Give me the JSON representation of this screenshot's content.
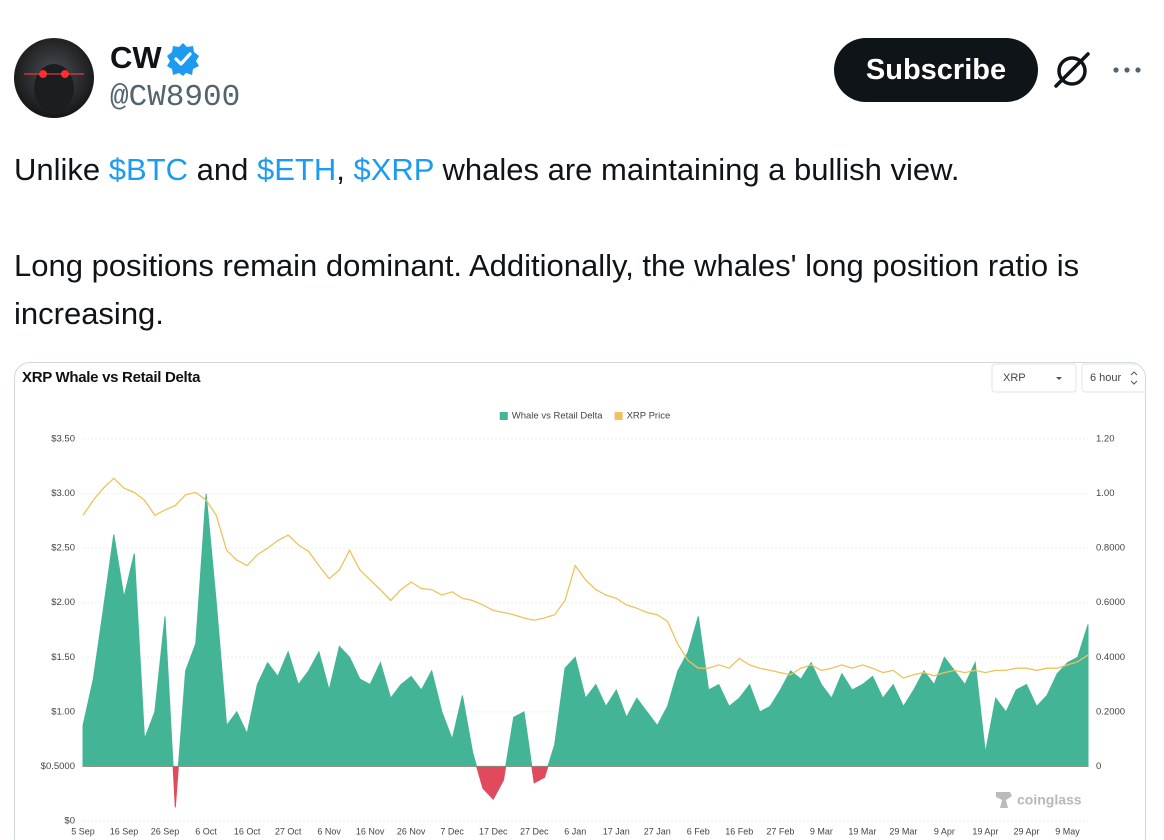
{
  "post": {
    "author_name": "CW",
    "handle": "@CW8900",
    "button": "Subscribe",
    "paragraphs": [
      [
        {
          "text": "Unlike "
        },
        {
          "text": "$BTC",
          "link": true
        },
        {
          "text": " and "
        },
        {
          "text": "$ETH",
          "link": true
        },
        {
          "text": ", "
        },
        {
          "text": "$XRP",
          "link": true
        },
        {
          "text": " whales are maintaining a bullish view."
        }
      ],
      [
        {
          "text": "Long positions remain dominant. Additionally, the whales' long position ratio is increasing."
        }
      ]
    ]
  },
  "chart_data": {
    "type": "area_line",
    "title": "XRP Whale vs Retail Delta",
    "coin_select": "XRP",
    "interval_select": "6 hour",
    "watermark": "coinglass",
    "grid": true,
    "legend": "top",
    "categories": [
      "5 Sep",
      null,
      null,
      null,
      "16 Sep",
      null,
      null,
      null,
      "26 Sep",
      null,
      null,
      null,
      "6 Oct",
      null,
      null,
      null,
      "16 Oct",
      null,
      null,
      null,
      "27 Oct",
      null,
      null,
      null,
      "6 Nov",
      null,
      null,
      null,
      "16 Nov",
      null,
      null,
      null,
      "26 Nov",
      null,
      null,
      null,
      "7 Dec",
      null,
      null,
      null,
      "17 Dec",
      null,
      null,
      null,
      "27 Dec",
      null,
      null,
      null,
      "6 Jan",
      null,
      null,
      null,
      "17 Jan",
      null,
      null,
      null,
      "27 Jan",
      null,
      null,
      null,
      "6 Feb",
      null,
      null,
      null,
      "16 Feb",
      null,
      null,
      null,
      "27 Feb",
      null,
      null,
      null,
      "9 Mar",
      null,
      null,
      null,
      "19 Mar",
      null,
      null,
      null,
      "29 Mar",
      null,
      null,
      null,
      "9 Apr",
      null,
      null,
      null,
      "19 Apr",
      null,
      null,
      null,
      "29 Apr",
      null,
      null,
      null,
      "9 May",
      null,
      null
    ],
    "ylim": [
      0,
      3.5
    ],
    "yticks": [
      {
        "value": 0,
        "label": "$0"
      },
      {
        "value": 0.5,
        "label": "$0.5000"
      },
      {
        "value": 1,
        "label": "$1.00"
      },
      {
        "value": 1.5,
        "label": "$1.50"
      },
      {
        "value": 2,
        "label": "$2.00"
      },
      {
        "value": 2.5,
        "label": "$2.50"
      },
      {
        "value": 3,
        "label": "$3.00"
      },
      {
        "value": 3.5,
        "label": "$3.50"
      }
    ],
    "y2lim": [
      -0.2,
      1.2
    ],
    "y2ticks": [
      0,
      {
        "value": 0.2,
        "label": "0.2000"
      },
      {
        "value": 0.4,
        "label": "0.4000"
      },
      {
        "value": 0.6,
        "label": "0.6000"
      },
      {
        "value": 0.8,
        "label": "0.8000"
      },
      {
        "value": 1,
        "label": "1.00"
      },
      {
        "value": 1.2,
        "label": "1.20"
      }
    ],
    "series": [
      {
        "name": "Whale vs Retail Delta",
        "color": "#43b596",
        "negative_color": "#e04a5c",
        "axis": "y2",
        "kind": "area",
        "values": [
          0.15,
          0.32,
          0.58,
          0.85,
          0.62,
          0.78,
          0.1,
          0.2,
          0.55,
          -0.15,
          0.35,
          0.45,
          1.0,
          0.6,
          0.15,
          0.2,
          0.12,
          0.3,
          0.38,
          0.33,
          0.42,
          0.3,
          0.35,
          0.42,
          0.28,
          0.44,
          0.4,
          0.32,
          0.3,
          0.38,
          0.25,
          0.3,
          0.33,
          0.28,
          0.35,
          0.2,
          0.1,
          0.26,
          0.05,
          -0.08,
          -0.12,
          -0.05,
          0.18,
          0.2,
          -0.06,
          -0.04,
          0.08,
          0.36,
          0.4,
          0.25,
          0.3,
          0.22,
          0.28,
          0.18,
          0.25,
          0.2,
          0.15,
          0.22,
          0.35,
          0.42,
          0.55,
          0.28,
          0.3,
          0.22,
          0.25,
          0.3,
          0.2,
          0.22,
          0.28,
          0.35,
          0.32,
          0.38,
          0.3,
          0.25,
          0.34,
          0.28,
          0.3,
          0.33,
          0.25,
          0.3,
          0.22,
          0.28,
          0.35,
          0.3,
          0.4,
          0.35,
          0.3,
          0.38,
          0.05,
          0.25,
          0.2,
          0.28,
          0.3,
          0.22,
          0.26,
          0.34,
          0.38,
          0.4,
          0.52
        ]
      },
      {
        "name": "XRP Price",
        "color": "#eec25c",
        "axis": "y",
        "kind": "line",
        "values": [
          2.8,
          2.94,
          3.05,
          3.14,
          3.05,
          3.01,
          2.94,
          2.8,
          2.85,
          2.89,
          2.99,
          3.01,
          2.94,
          2.8,
          2.48,
          2.39,
          2.34,
          2.44,
          2.5,
          2.57,
          2.62,
          2.53,
          2.47,
          2.34,
          2.22,
          2.3,
          2.48,
          2.3,
          2.21,
          2.12,
          2.02,
          2.12,
          2.19,
          2.13,
          2.12,
          2.07,
          2.1,
          2.04,
          2.02,
          1.98,
          1.93,
          1.91,
          1.89,
          1.86,
          1.84,
          1.86,
          1.89,
          2.02,
          2.34,
          2.21,
          2.12,
          2.07,
          2.04,
          1.98,
          1.95,
          1.91,
          1.89,
          1.83,
          1.62,
          1.47,
          1.4,
          1.4,
          1.43,
          1.4,
          1.49,
          1.43,
          1.4,
          1.38,
          1.36,
          1.34,
          1.4,
          1.43,
          1.38,
          1.4,
          1.43,
          1.4,
          1.43,
          1.4,
          1.36,
          1.38,
          1.31,
          1.34,
          1.36,
          1.33,
          1.36,
          1.38,
          1.36,
          1.38,
          1.36,
          1.38,
          1.38,
          1.4,
          1.4,
          1.38,
          1.4,
          1.4,
          1.43,
          1.46,
          1.52
        ]
      }
    ]
  }
}
